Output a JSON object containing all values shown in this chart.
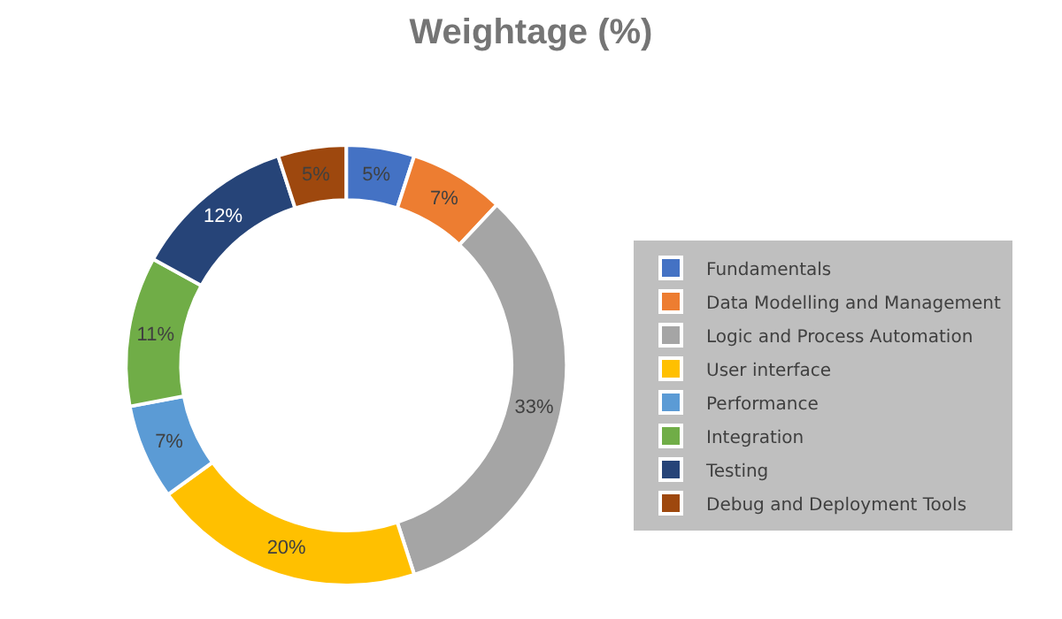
{
  "chart_data": {
    "type": "donut",
    "title": "Weightage (%)",
    "categories": [
      "Fundamentals",
      "Data Modelling and Management",
      "Logic and Process Automation",
      "User interface",
      "Performance",
      "Integration",
      "Testing",
      "Debug and Deployment Tools"
    ],
    "values": [
      5,
      7,
      33,
      20,
      7,
      11,
      12,
      5
    ],
    "value_labels": [
      "5%",
      "7%",
      "33%",
      "20%",
      "7%",
      "11%",
      "12%",
      "5%"
    ],
    "colors": [
      "#4472c4",
      "#ed7d31",
      "#a5a5a5",
      "#ffc000",
      "#5b9bd5",
      "#70ad47",
      "#264478",
      "#9e480e"
    ],
    "legend": "right"
  }
}
